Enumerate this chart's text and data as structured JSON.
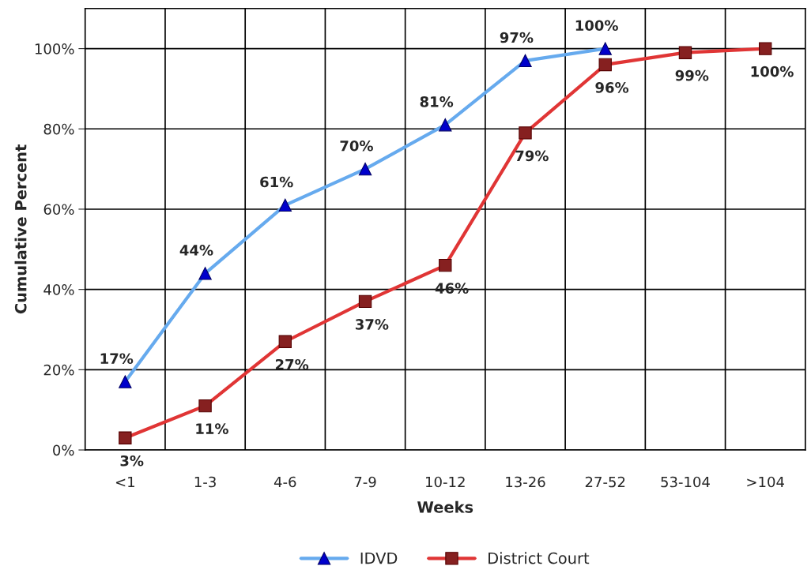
{
  "chart_data": {
    "type": "line",
    "xlabel": "Weeks",
    "ylabel": "Cumulative Percent",
    "categories": [
      "<1",
      "1-3",
      "4-6",
      "7-9",
      "10-12",
      "13-26",
      "27-52",
      "53-104",
      ">104"
    ],
    "series": [
      {
        "name": "IDVD",
        "color": "#66aaee",
        "marker": "triangle",
        "values": [
          17,
          44,
          61,
          70,
          81,
          97,
          100,
          null,
          null
        ],
        "value_labels": [
          "17%",
          "44%",
          "61%",
          "70%",
          "81%",
          "97%",
          "100%",
          null,
          null
        ]
      },
      {
        "name": "District Court",
        "color": "#e03535",
        "marker": "square",
        "values": [
          3,
          11,
          27,
          37,
          46,
          79,
          96,
          99,
          100
        ],
        "value_labels": [
          "3%",
          "11%",
          "27%",
          "37%",
          "46%",
          "79%",
          "96%",
          "99%",
          "100%"
        ]
      }
    ],
    "ylim": [
      0,
      110
    ],
    "yticks": [
      {
        "value": 0,
        "label": "0%"
      },
      {
        "value": 20,
        "label": "20%"
      },
      {
        "value": 40,
        "label": "40%"
      },
      {
        "value": 60,
        "label": "60%"
      },
      {
        "value": 80,
        "label": "80%"
      },
      {
        "value": 100,
        "label": "100%"
      }
    ],
    "grid": true,
    "legend": "bottom"
  }
}
